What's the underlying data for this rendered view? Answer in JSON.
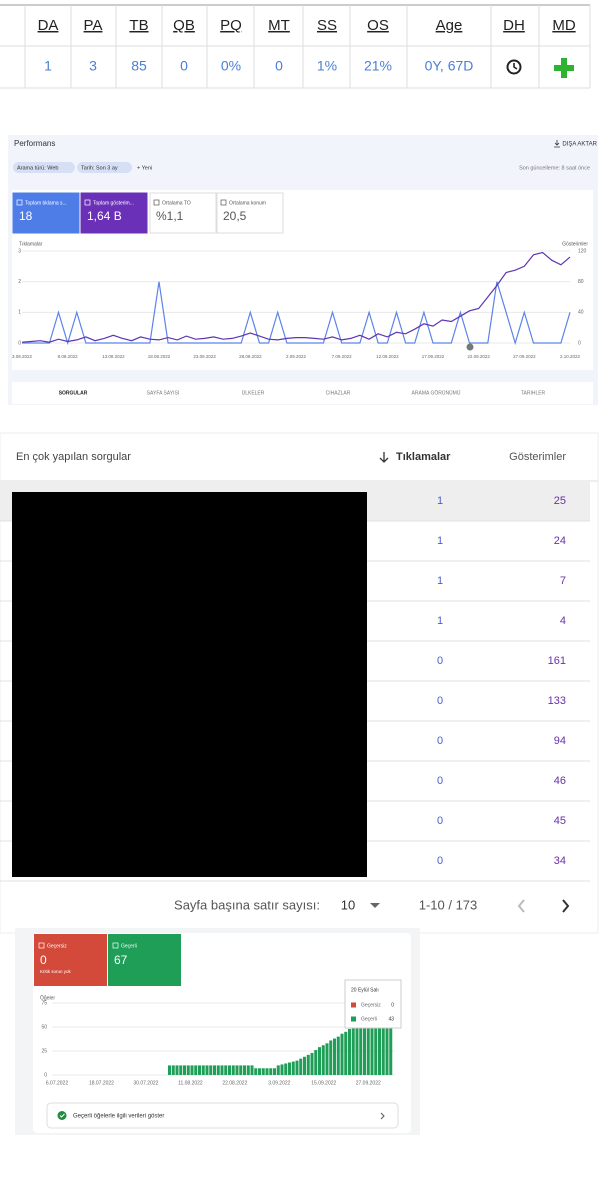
{
  "seo_table": {
    "headers": [
      "DA",
      "PA",
      "TB",
      "QB",
      "PQ",
      "MT",
      "SS",
      "OS",
      "Age",
      "DH",
      "MD"
    ],
    "values": [
      1,
      3,
      85,
      0,
      "0%",
      0,
      "1%",
      "21%",
      "0Y, 67D"
    ]
  },
  "performance": {
    "title": "Performans",
    "export": "DIŞA AKTAR",
    "filters": [
      "Arama türü: Web",
      "Tarih: Son 3 ay"
    ],
    "new_filter": "+ Yeni",
    "updated": "Son güncelleme: 8 saat önce",
    "metrics": [
      {
        "label": "Toplam tıklama s...",
        "value": 18
      },
      {
        "label": "Toplam gösterim...",
        "value": "1,64 B"
      },
      {
        "label": "Ortalama TO",
        "value": "%1,1"
      },
      {
        "label": "Ortalama konum",
        "value": "20,5"
      }
    ],
    "chart": {
      "type": "line",
      "y_label": "Tıklamalar",
      "y2_label": "Gösterimler",
      "xticks": [
        "3.08.2022",
        "8.08.2022",
        "13.08.2022",
        "18.08.2022",
        "23.08.2022",
        "28.08.2022",
        "2.09.2022",
        "7.09.2022",
        "12.09.2022",
        "17.09.2022",
        "22.09.2022",
        "27.09.2022",
        "2.10.2022"
      ],
      "ylim": [
        0,
        3
      ],
      "yticks": [
        0,
        1,
        2,
        3
      ],
      "y2lim": [
        0,
        120
      ],
      "y2ticks": [
        0,
        40,
        80,
        120
      ],
      "series": [
        {
          "color": "#5b83ea",
          "values": [
            0,
            0,
            0,
            0,
            1,
            0,
            1,
            0,
            0,
            0,
            0,
            0,
            0,
            0,
            0,
            2,
            0,
            0,
            0,
            0,
            0,
            0,
            0,
            0,
            0,
            1,
            0,
            0,
            1,
            0,
            0,
            0,
            0,
            0,
            1,
            0,
            0,
            0,
            1,
            0,
            0,
            1,
            0,
            0,
            1,
            0,
            0,
            0,
            1,
            0,
            0,
            0,
            2,
            1,
            0,
            1,
            0,
            0,
            0,
            0,
            1
          ]
        },
        {
          "color": "#5e35b1",
          "axis": "y2",
          "values": [
            1,
            2,
            3,
            1,
            5,
            2,
            4,
            8,
            3,
            6,
            10,
            6,
            3,
            8,
            5,
            4,
            7,
            4,
            9,
            5,
            6,
            8,
            5,
            6,
            9,
            13,
            9,
            5,
            4,
            6,
            7,
            7,
            6,
            5,
            8,
            4,
            6,
            10,
            5,
            12,
            8,
            14,
            12,
            18,
            25,
            22,
            30,
            28,
            35,
            42,
            45,
            60,
            75,
            92,
            95,
            100,
            115,
            118,
            108,
            102,
            112
          ]
        }
      ]
    },
    "tabs": [
      "SORGULAR",
      "SAYFA SAYISI",
      "ÜLKELER",
      "CIHAZLAR",
      "ARAMA GÖRÜNÜMÜ",
      "TARIHLER"
    ]
  },
  "queries": {
    "headers": [
      "En çok yapılan sorgular",
      "Tıklamalar",
      "Gösterimler"
    ],
    "rows": [
      [
        1,
        25
      ],
      [
        1,
        24
      ],
      [
        1,
        7
      ],
      [
        1,
        4
      ],
      [
        0,
        161
      ],
      [
        0,
        133
      ],
      [
        0,
        94
      ],
      [
        0,
        46
      ],
      [
        0,
        45
      ],
      [
        0,
        34
      ]
    ],
    "rows_per_page_label": "Sayfa başına satır sayısı:",
    "rows_per_page": 10,
    "range": "1-10 / 173"
  },
  "rich_results": {
    "cards": [
      {
        "label": "Geçersiz",
        "value": 0,
        "note": "Kritik sorun yok"
      },
      {
        "label": "Geçerli",
        "value": 67
      }
    ],
    "chart": {
      "type": "bar",
      "y_label": "Öğeler",
      "ylim": [
        0,
        75
      ],
      "yticks": [
        0,
        25,
        50,
        75
      ],
      "color": "#1e9e57",
      "xticks": [
        "6.07.2022",
        "18.07.2022",
        "30.07.2022",
        "11.08.2022",
        "22.08.2022",
        "3.09.2022",
        "15.09.2022",
        "27.09.2022"
      ],
      "values": [
        0,
        0,
        0,
        0,
        0,
        0,
        0,
        0,
        0,
        0,
        0,
        0,
        0,
        0,
        0,
        0,
        0,
        0,
        0,
        0,
        0,
        0,
        0,
        0,
        0,
        0,
        0,
        0,
        0,
        0,
        10,
        10,
        10,
        10,
        10,
        10,
        10,
        10,
        10,
        10,
        10,
        10,
        10,
        10,
        10,
        10,
        10,
        10,
        10,
        10,
        10,
        10,
        10,
        7,
        7,
        7,
        7,
        7,
        7,
        10,
        11,
        12,
        13,
        14,
        15,
        17,
        19,
        21,
        23,
        26,
        29,
        31,
        33,
        36,
        38,
        40,
        43,
        45,
        48,
        52,
        55,
        58,
        60,
        62,
        63,
        64,
        65,
        66,
        67,
        67
      ]
    },
    "tooltip": {
      "date": "20 Eylül Salı",
      "rows": [
        {
          "label": "Geçersiz",
          "value": 0
        },
        {
          "label": "Geçerli",
          "value": 43
        }
      ]
    },
    "link": "Geçerli öğelerle ilgili verileri göster"
  }
}
